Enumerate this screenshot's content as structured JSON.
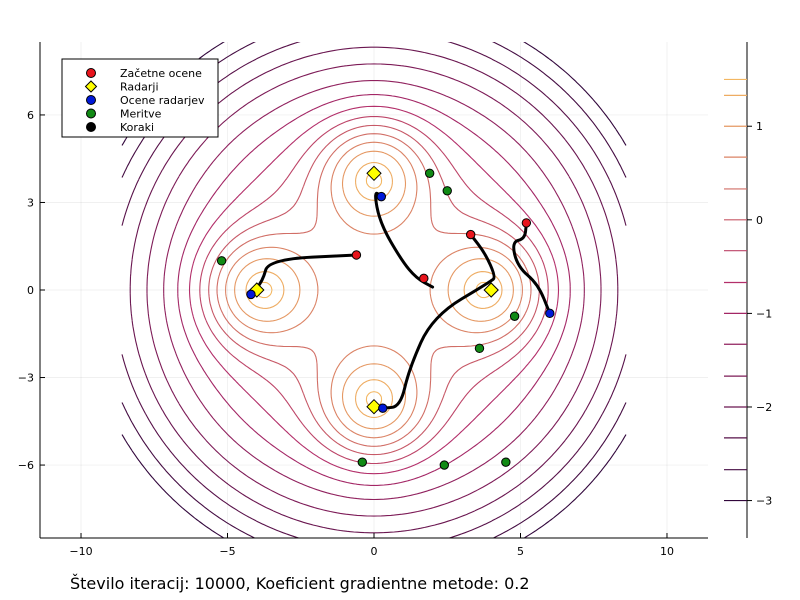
{
  "chart_data": {
    "type": "scatter",
    "title": "",
    "xlabel": "",
    "ylabel": "",
    "xlim": [
      -11.4,
      11.4
    ],
    "ylim": [
      -8.5,
      8.5
    ],
    "xticks": [
      -10,
      -5,
      0,
      5,
      10
    ],
    "yticks": [
      -6,
      -3,
      0,
      3,
      6
    ],
    "xtick_labels": [
      "−10",
      "−5",
      "0",
      "5",
      "10"
    ],
    "ytick_labels": [
      "−6",
      "−3",
      "0",
      "3",
      "6"
    ],
    "grid": true,
    "legend_position": "top-left",
    "legend": [
      {
        "label": "Začetne ocene",
        "color": "#e8141c",
        "marker": "circle"
      },
      {
        "label": "Radarji",
        "color": "#ffff00",
        "marker": "diamond"
      },
      {
        "label": "Ocene radarjev",
        "color": "#0018d8",
        "marker": "circle"
      },
      {
        "label": "Meritve",
        "color": "#118a14",
        "marker": "circle"
      },
      {
        "label": "Koraki",
        "color": "#000000",
        "marker": "circle"
      }
    ],
    "series": [
      {
        "name": "Začetne ocene",
        "points": [
          [
            -0.6,
            1.2
          ],
          [
            1.7,
            0.4
          ],
          [
            3.3,
            1.9
          ],
          [
            5.2,
            2.3
          ]
        ]
      },
      {
        "name": "Radarji",
        "points": [
          [
            0,
            4
          ],
          [
            -4,
            0
          ],
          [
            4,
            0
          ],
          [
            0,
            -4
          ]
        ]
      },
      {
        "name": "Ocene radarjev",
        "points": [
          [
            0.25,
            3.2
          ],
          [
            -4.2,
            -0.15
          ],
          [
            6.0,
            -0.8
          ],
          [
            0.3,
            -4.05
          ]
        ]
      },
      {
        "name": "Meritve",
        "points": [
          [
            1.9,
            4.0
          ],
          [
            2.5,
            3.4
          ],
          [
            -5.2,
            1.0
          ],
          [
            4.8,
            -0.9
          ],
          [
            3.6,
            -2.0
          ],
          [
            -0.4,
            -5.9
          ],
          [
            2.4,
            -6.0
          ],
          [
            4.5,
            -5.9
          ]
        ]
      }
    ],
    "steps": [
      [
        [
          -0.6,
          1.2
        ],
        [
          -3.6,
          1.05
        ],
        [
          -3.8,
          0.3
        ],
        [
          -4.2,
          -0.15
        ]
      ],
      [
        [
          0.25,
          3.2
        ],
        [
          0.0,
          3.4
        ],
        [
          0.2,
          2.3
        ],
        [
          0.95,
          1.0
        ],
        [
          1.45,
          0.4
        ],
        [
          2.0,
          0.1
        ]
      ],
      [
        [
          3.3,
          1.9
        ],
        [
          3.8,
          1.25
        ],
        [
          4.15,
          0.45
        ],
        [
          4.0,
          0.3
        ],
        [
          2.0,
          -0.9
        ],
        [
          1.2,
          -2.7
        ],
        [
          0.9,
          -4.0
        ],
        [
          0.3,
          -4.05
        ]
      ],
      [
        [
          5.2,
          2.3
        ],
        [
          5.15,
          1.75
        ],
        [
          4.7,
          1.65
        ],
        [
          4.9,
          0.8
        ],
        [
          5.6,
          0.2
        ],
        [
          6.0,
          -0.8
        ]
      ]
    ],
    "contour_levels": [
      -3.0,
      -2.67,
      -2.33,
      -2.0,
      -1.67,
      -1.33,
      -1.0,
      -0.67,
      -0.33,
      0.0,
      0.33,
      0.67,
      1.0,
      1.33,
      1.5
    ],
    "colorbar": {
      "ticks": [
        1,
        0,
        -1,
        -2,
        -3
      ],
      "tick_labels": [
        "1",
        "0",
        "−1",
        "−2",
        "−3"
      ],
      "range": [
        -3.4,
        1.9
      ],
      "colors": {
        "low": "#1a0033",
        "mid": "#b12a6a",
        "high": "#ffd060"
      }
    },
    "caption": "Število iteracij: 10000, Koeficient gradientne metode: 0.2"
  }
}
